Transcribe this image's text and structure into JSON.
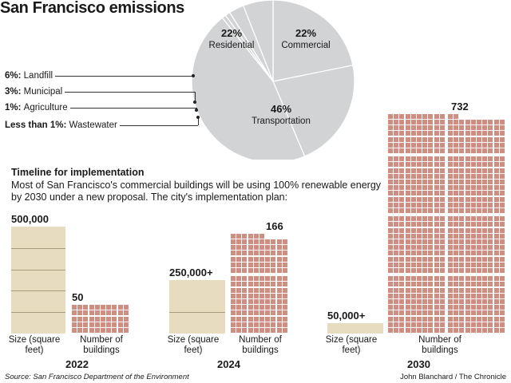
{
  "title": "San Francisco emissions",
  "chart_data": [
    {
      "type": "pie",
      "title": "San Francisco emissions",
      "slices": [
        {
          "name": "Residential",
          "value": 22,
          "label": "22%",
          "color": "#d1d3d4"
        },
        {
          "name": "Commercial",
          "value": 22,
          "label": "22%",
          "color": "#d1d3d4"
        },
        {
          "name": "Transportation",
          "value": 46,
          "label": "46%",
          "color": "#d1d3d4"
        },
        {
          "name": "Wastewater",
          "value": 0.8,
          "label": "Less than 1%:",
          "color": "#d1d3d4"
        },
        {
          "name": "Agriculture",
          "value": 1,
          "label": "1%:",
          "color": "#d1d3d4"
        },
        {
          "name": "Municipal",
          "value": 3,
          "label": "3%:",
          "color": "#d1d3d4"
        },
        {
          "name": "Landfill",
          "value": 6,
          "label": "6%:",
          "color": "#d1d3d4"
        }
      ]
    },
    {
      "type": "bar",
      "title": "Timeline for implementation",
      "categories": [
        "2022",
        "2024",
        "2030"
      ],
      "series": [
        {
          "name": "Size (square feet)",
          "values": [
            500000,
            250000,
            50000
          ],
          "labels": [
            "500,000",
            "250,000+",
            "50,000+"
          ],
          "color": "#e8dcc0"
        },
        {
          "name": "Number of buildings",
          "values": [
            50,
            166,
            732
          ],
          "labels": [
            "50",
            "166",
            "732"
          ],
          "color": "#cf8e82"
        }
      ]
    }
  ],
  "timeline": {
    "heading": "Timeline for implementation",
    "description": "Most of San Francisco's commercial buildings will be using 100% renewable energy by 2030 under a new proposal. The city's implementation plan:",
    "size_label": "Size\n(square feet)",
    "count_label": "Number of\nbuildings"
  },
  "source": "Source: San Francisco Department of the Environment",
  "credit": "John Blanchard / The Chronicle",
  "colors": {
    "pie": "#d1d3d4",
    "area": "#e8dcc0",
    "building": "#cf8e82"
  }
}
